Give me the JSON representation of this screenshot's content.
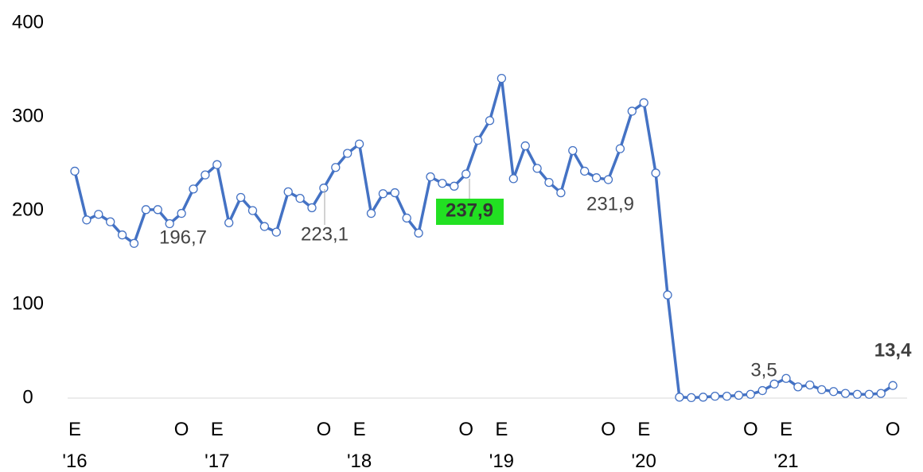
{
  "chart_data": {
    "type": "line",
    "categories": [
      "E\n'16",
      null,
      null,
      null,
      null,
      null,
      null,
      null,
      null,
      "O",
      null,
      null,
      "E\n'17",
      null,
      null,
      null,
      null,
      null,
      null,
      null,
      null,
      "O",
      null,
      null,
      "E\n'18",
      null,
      null,
      null,
      null,
      null,
      null,
      null,
      null,
      "O",
      null,
      null,
      "E\n'19",
      null,
      null,
      null,
      null,
      null,
      null,
      null,
      null,
      "O",
      null,
      null,
      "E\n'20",
      null,
      null,
      null,
      null,
      null,
      null,
      null,
      null,
      "O",
      null,
      null,
      "E\n'21",
      null,
      null,
      null,
      null,
      null,
      null,
      null,
      null,
      "O"
    ],
    "series": [
      {
        "color": "#4472c4",
        "values": [
          242,
          190,
          196,
          188,
          174,
          165,
          201,
          201,
          186,
          197,
          223,
          238,
          249,
          187,
          214,
          200,
          183,
          177,
          220,
          213,
          203,
          224,
          246,
          261,
          271,
          197,
          218,
          219,
          192,
          176,
          236,
          229,
          226,
          239,
          275,
          296,
          341,
          234,
          269,
          245,
          230,
          219,
          264,
          242,
          235,
          233,
          266,
          306,
          315,
          240,
          110,
          1,
          0.5,
          1,
          2,
          2,
          3,
          4,
          8,
          15,
          21,
          12,
          14,
          9,
          7,
          5,
          4,
          4,
          5,
          13.4
        ],
        "value_labels": [
          null,
          null,
          null,
          null,
          null,
          null,
          null,
          null,
          null,
          null,
          null,
          null,
          null,
          null,
          null,
          null,
          null,
          null,
          null,
          null,
          null,
          null,
          null,
          null,
          null,
          null,
          null,
          null,
          null,
          null,
          null,
          null,
          null,
          null,
          null,
          null,
          null,
          null,
          null,
          null,
          null,
          null,
          null,
          null,
          null,
          null,
          null,
          null,
          null,
          null,
          null,
          null,
          null,
          null,
          null,
          null,
          null,
          null,
          null,
          null,
          null,
          null,
          null,
          null,
          null,
          null,
          null,
          null,
          null,
          "13,4"
        ]
      }
    ],
    "annotations": [
      "196,7",
      "223,1",
      "237,9",
      "231,9",
      "3,5"
    ],
    "ylim": [
      0,
      400
    ],
    "yticks": [
      0,
      100,
      200,
      300,
      400
    ]
  }
}
